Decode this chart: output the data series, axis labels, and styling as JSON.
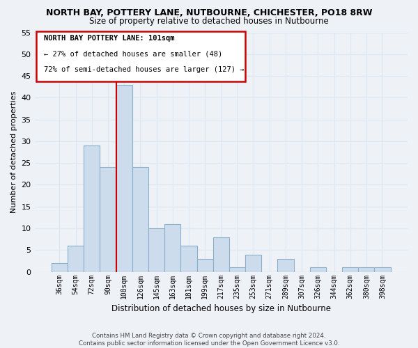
{
  "title": "NORTH BAY, POTTERY LANE, NUTBOURNE, CHICHESTER, PO18 8RW",
  "subtitle": "Size of property relative to detached houses in Nutbourne",
  "xlabel": "Distribution of detached houses by size in Nutbourne",
  "ylabel": "Number of detached properties",
  "bar_color": "#ccdcec",
  "bar_edge_color": "#8ab0cc",
  "categories": [
    "36sqm",
    "54sqm",
    "72sqm",
    "90sqm",
    "108sqm",
    "126sqm",
    "145sqm",
    "163sqm",
    "181sqm",
    "199sqm",
    "217sqm",
    "235sqm",
    "253sqm",
    "271sqm",
    "289sqm",
    "307sqm",
    "326sqm",
    "344sqm",
    "362sqm",
    "380sqm",
    "398sqm"
  ],
  "values": [
    2,
    6,
    29,
    24,
    43,
    24,
    10,
    11,
    6,
    3,
    8,
    1,
    4,
    0,
    3,
    0,
    1,
    0,
    1,
    1,
    1
  ],
  "ylim": [
    0,
    55
  ],
  "yticks": [
    0,
    5,
    10,
    15,
    20,
    25,
    30,
    35,
    40,
    45,
    50,
    55
  ],
  "annotation_title": "NORTH BAY POTTERY LANE: 101sqm",
  "annotation_line1": "← 27% of detached houses are smaller (48)",
  "annotation_line2": "72% of semi-detached houses are larger (127) →",
  "vline_x": 3.5,
  "footer1": "Contains HM Land Registry data © Crown copyright and database right 2024.",
  "footer2": "Contains public sector information licensed under the Open Government Licence v3.0.",
  "background_color": "#eef2f7",
  "grid_color": "#dce8f4",
  "title_fontsize": 9,
  "subtitle_fontsize": 8.5,
  "ylabel_fontsize": 8,
  "xlabel_fontsize": 8.5
}
